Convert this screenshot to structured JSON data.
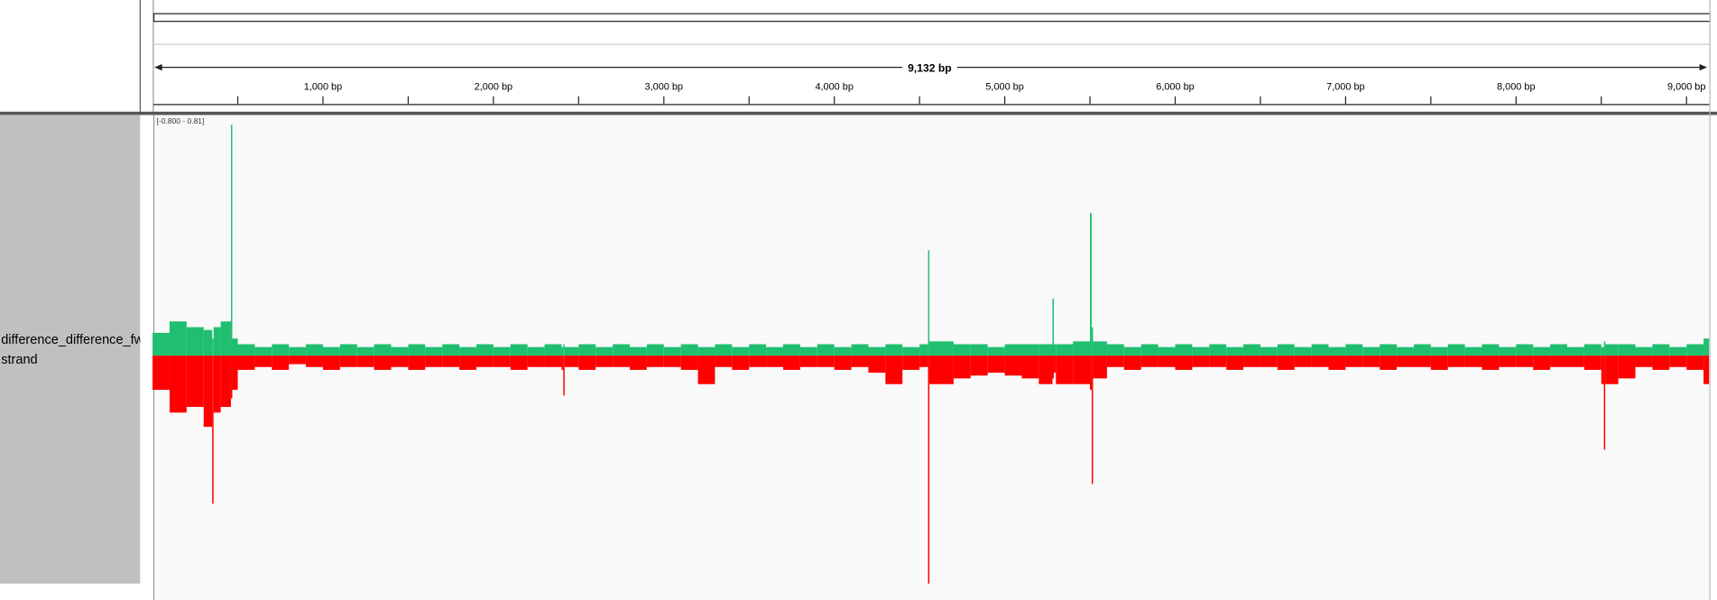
{
  "chart_data": {
    "type": "bar",
    "track_label_lines": [
      "difference_difference_fw",
      "strand"
    ],
    "span_label": "9,132 bp",
    "data_range_label": "[-0.800 - 0.81]",
    "xlim": [
      0,
      9132
    ],
    "xticks": [
      {
        "value": 1000,
        "label": "1,000 bp"
      },
      {
        "value": 2000,
        "label": "2,000 bp"
      },
      {
        "value": 3000,
        "label": "3,000 bp"
      },
      {
        "value": 4000,
        "label": "4,000 bp"
      },
      {
        "value": 5000,
        "label": "5,000 bp"
      },
      {
        "value": 6000,
        "label": "6,000 bp"
      },
      {
        "value": 7000,
        "label": "7,000 bp"
      },
      {
        "value": 8000,
        "label": "8,000 bp"
      },
      {
        "value": 9000,
        "label": "9,000 bp"
      }
    ],
    "xminor_ticks": [
      500,
      1500,
      2500,
      3500,
      4500,
      5500,
      6500,
      7500,
      8500
    ],
    "ylim": [
      -0.8,
      0.81
    ],
    "x": [
      0,
      100,
      200,
      300,
      350,
      358,
      400,
      460,
      468,
      500,
      600,
      700,
      800,
      900,
      1000,
      1100,
      1200,
      1300,
      1400,
      1500,
      1600,
      1700,
      1800,
      1900,
      2000,
      2100,
      2200,
      2300,
      2400,
      2410,
      2418,
      2500,
      2600,
      2700,
      2800,
      2900,
      3000,
      3100,
      3200,
      3300,
      3400,
      3500,
      3600,
      3700,
      3800,
      3900,
      4000,
      4100,
      4200,
      4300,
      4400,
      4500,
      4550,
      4558,
      4600,
      4700,
      4800,
      4900,
      5000,
      5100,
      5200,
      5280,
      5288,
      5300,
      5400,
      5500,
      5510,
      5518,
      5600,
      5700,
      5800,
      5900,
      6000,
      6100,
      6200,
      6300,
      6400,
      6500,
      6600,
      6700,
      6800,
      6900,
      7000,
      7100,
      7200,
      7300,
      7400,
      7500,
      7600,
      7700,
      7800,
      7900,
      8000,
      8100,
      8200,
      8300,
      8400,
      8500,
      8515,
      8523,
      8600,
      8700,
      8800,
      8900,
      9000,
      9100
    ],
    "series": [
      {
        "color": "#1fbf6f",
        "values": [
          0.08,
          0.12,
          0.1,
          0.09,
          0.06,
          0.1,
          0.12,
          0.81,
          0.06,
          0.04,
          0.03,
          0.04,
          0.03,
          0.04,
          0.03,
          0.04,
          0.03,
          0.04,
          0.03,
          0.04,
          0.03,
          0.04,
          0.03,
          0.04,
          0.03,
          0.04,
          0.03,
          0.04,
          0.03,
          0.04,
          0.03,
          0.04,
          0.03,
          0.04,
          0.03,
          0.04,
          0.03,
          0.04,
          0.03,
          0.04,
          0.03,
          0.04,
          0.03,
          0.04,
          0.03,
          0.04,
          0.03,
          0.04,
          0.03,
          0.04,
          0.03,
          0.04,
          0.37,
          0.05,
          0.05,
          0.04,
          0.04,
          0.03,
          0.04,
          0.04,
          0.04,
          0.2,
          0.04,
          0.04,
          0.05,
          0.5,
          0.1,
          0.05,
          0.04,
          0.03,
          0.04,
          0.03,
          0.04,
          0.03,
          0.04,
          0.03,
          0.04,
          0.03,
          0.04,
          0.03,
          0.04,
          0.03,
          0.04,
          0.03,
          0.04,
          0.03,
          0.04,
          0.03,
          0.04,
          0.03,
          0.04,
          0.03,
          0.04,
          0.03,
          0.04,
          0.03,
          0.04,
          0.03,
          0.05,
          0.04,
          0.04,
          0.03,
          0.04,
          0.03,
          0.04,
          0.06
        ]
      },
      {
        "color": "#ff0000",
        "values": [
          -0.12,
          -0.2,
          -0.18,
          -0.25,
          -0.52,
          -0.2,
          -0.18,
          -0.15,
          -0.12,
          -0.05,
          -0.04,
          -0.05,
          -0.03,
          -0.04,
          -0.05,
          -0.04,
          -0.04,
          -0.05,
          -0.04,
          -0.05,
          -0.04,
          -0.04,
          -0.05,
          -0.04,
          -0.04,
          -0.05,
          -0.04,
          -0.04,
          -0.05,
          -0.14,
          -0.04,
          -0.05,
          -0.04,
          -0.04,
          -0.05,
          -0.04,
          -0.04,
          -0.05,
          -0.1,
          -0.04,
          -0.05,
          -0.04,
          -0.04,
          -0.05,
          -0.04,
          -0.04,
          -0.05,
          -0.04,
          -0.06,
          -0.1,
          -0.05,
          -0.04,
          -0.8,
          -0.1,
          -0.1,
          -0.08,
          -0.07,
          -0.06,
          -0.07,
          -0.08,
          -0.1,
          -0.08,
          -0.06,
          -0.1,
          -0.1,
          -0.12,
          -0.45,
          -0.08,
          -0.04,
          -0.05,
          -0.04,
          -0.04,
          -0.05,
          -0.04,
          -0.04,
          -0.05,
          -0.04,
          -0.04,
          -0.05,
          -0.04,
          -0.04,
          -0.05,
          -0.04,
          -0.04,
          -0.05,
          -0.04,
          -0.04,
          -0.05,
          -0.04,
          -0.04,
          -0.05,
          -0.04,
          -0.04,
          -0.05,
          -0.04,
          -0.04,
          -0.05,
          -0.1,
          -0.33,
          -0.1,
          -0.08,
          -0.04,
          -0.05,
          -0.04,
          -0.05,
          -0.1
        ]
      }
    ]
  }
}
